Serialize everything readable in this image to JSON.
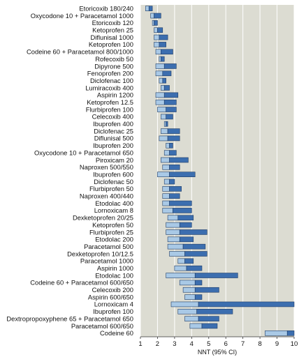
{
  "chart_data": {
    "type": "bar",
    "subtype": "horizontal-range",
    "xlabel": "NNT (95% CI)",
    "xlim": [
      1,
      10
    ],
    "xticks": [
      1,
      2,
      3,
      4,
      5,
      6,
      7,
      8,
      9,
      10
    ],
    "grid": true,
    "background_color": "#dcdcd2",
    "light_color": "#a9c9e6",
    "dark_color": "#3c6eaf",
    "rows": [
      {
        "label": "Etoricoxib 180/240",
        "low": 1.3,
        "nnt": 1.5,
        "high": 1.7
      },
      {
        "label": "Oxycodone 10 + Paracetamol 1000",
        "low": 1.6,
        "nnt": 1.8,
        "high": 2.2
      },
      {
        "label": "Etoricoxib 120",
        "low": 1.7,
        "nnt": 1.8,
        "high": 2.0
      },
      {
        "label": "Ketoprofen 25",
        "low": 1.8,
        "nnt": 2.0,
        "high": 2.3
      },
      {
        "label": "Diflunisal 1000",
        "low": 1.8,
        "nnt": 2.1,
        "high": 2.6
      },
      {
        "label": "Ketoprofen 100",
        "low": 1.8,
        "nnt": 2.1,
        "high": 2.5
      },
      {
        "label": "Codeine 60 + Paracetamol 800/1000",
        "low": 1.9,
        "nnt": 2.2,
        "high": 2.9
      },
      {
        "label": "Rofecoxib 50",
        "low": 2.1,
        "nnt": 2.2,
        "high": 2.4
      },
      {
        "label": "Dipyrone 500",
        "low": 1.9,
        "nnt": 2.4,
        "high": 3.1
      },
      {
        "label": "Fenoprofen 200",
        "low": 1.9,
        "nnt": 2.3,
        "high": 2.8
      },
      {
        "label": "Diclofenac 100",
        "low": 2.1,
        "nnt": 2.3,
        "high": 2.5
      },
      {
        "label": "Lumiracoxib 400",
        "low": 2.2,
        "nnt": 2.4,
        "high": 2.7
      },
      {
        "label": "Aspirin 1200",
        "low": 1.9,
        "nnt": 2.4,
        "high": 3.2
      },
      {
        "label": "Ketoprofen 12.5",
        "low": 1.9,
        "nnt": 2.4,
        "high": 3.1
      },
      {
        "label": "Flurbiprofen 100",
        "low": 2.0,
        "nnt": 2.5,
        "high": 3.1
      },
      {
        "label": "Celecoxib 400",
        "low": 2.2,
        "nnt": 2.5,
        "high": 2.9
      },
      {
        "label": "Ibuprofen 400",
        "low": 2.4,
        "nnt": 2.5,
        "high": 2.6
      },
      {
        "label": "Diclofenac 25",
        "low": 2.2,
        "nnt": 2.6,
        "high": 3.3
      },
      {
        "label": "Diflunisal 500",
        "low": 2.1,
        "nnt": 2.6,
        "high": 3.3
      },
      {
        "label": "Ibuprofen 200",
        "low": 2.5,
        "nnt": 2.7,
        "high": 2.9
      },
      {
        "label": "Oxycodone 10 + Paracetamol 650",
        "low": 2.4,
        "nnt": 2.7,
        "high": 3.1
      },
      {
        "label": "Piroxicam 20",
        "low": 2.2,
        "nnt": 2.7,
        "high": 3.8
      },
      {
        "label": "Naproxen 500/550",
        "low": 2.3,
        "nnt": 2.7,
        "high": 3.3
      },
      {
        "label": "Ibuprofen 600",
        "low": 2.0,
        "nnt": 2.7,
        "high": 4.2
      },
      {
        "label": "Diclofenac 50",
        "low": 2.4,
        "nnt": 2.7,
        "high": 3.0
      },
      {
        "label": "Flurbiprofen 50",
        "low": 2.3,
        "nnt": 2.7,
        "high": 3.4
      },
      {
        "label": "Naproxen 400/440",
        "low": 2.3,
        "nnt": 2.7,
        "high": 3.3
      },
      {
        "label": "Etodolac 400",
        "low": 2.3,
        "nnt": 2.7,
        "high": 4.0
      },
      {
        "label": "Lornoxicam 8",
        "low": 2.3,
        "nnt": 2.9,
        "high": 4.0
      },
      {
        "label": "Dexketoprofen 20/25",
        "low": 2.6,
        "nnt": 3.2,
        "high": 4.1
      },
      {
        "label": "Ketoprofen 50",
        "low": 2.5,
        "nnt": 3.3,
        "high": 4.0
      },
      {
        "label": "Flurbiprofen 25",
        "low": 2.5,
        "nnt": 3.3,
        "high": 4.9
      },
      {
        "label": "Etodolac 200",
        "low": 2.6,
        "nnt": 3.3,
        "high": 4.1
      },
      {
        "label": "Paracetamol 500",
        "low": 2.6,
        "nnt": 3.5,
        "high": 4.8
      },
      {
        "label": "Dexketoprofen 10/12.5",
        "low": 2.7,
        "nnt": 3.6,
        "high": 4.9
      },
      {
        "label": "Paracetamol 1000",
        "low": 3.2,
        "nnt": 3.6,
        "high": 4.1
      },
      {
        "label": "Aspirin 1000",
        "low": 3.0,
        "nnt": 3.7,
        "high": 4.6
      },
      {
        "label": "Etodolac 100",
        "low": 2.5,
        "nnt": 4.2,
        "high": 6.7
      },
      {
        "label": "Codeine 60 + Paracetamol 600/650",
        "low": 3.3,
        "nnt": 4.2,
        "high": 4.6
      },
      {
        "label": "Celecoxib 200",
        "low": 3.5,
        "nnt": 4.2,
        "high": 5.6
      },
      {
        "label": "Aspirin 600/650",
        "low": 3.6,
        "nnt": 4.2,
        "high": 4.6
      },
      {
        "label": "Lornoxicam 4",
        "low": 2.8,
        "nnt": 4.4,
        "high": 10.0
      },
      {
        "label": "Ibuprofen 100",
        "low": 3.2,
        "nnt": 4.3,
        "high": 6.4
      },
      {
        "label": "Dextropropoxyphene 65 + Paracetamol 650",
        "low": 3.6,
        "nnt": 4.4,
        "high": 5.6
      },
      {
        "label": "Paracetamol 600/650",
        "low": 3.9,
        "nnt": 4.6,
        "high": 5.5
      },
      {
        "label": "Codeine 60",
        "low": 8.3,
        "nnt": 9.6,
        "high": 10.0
      }
    ]
  }
}
